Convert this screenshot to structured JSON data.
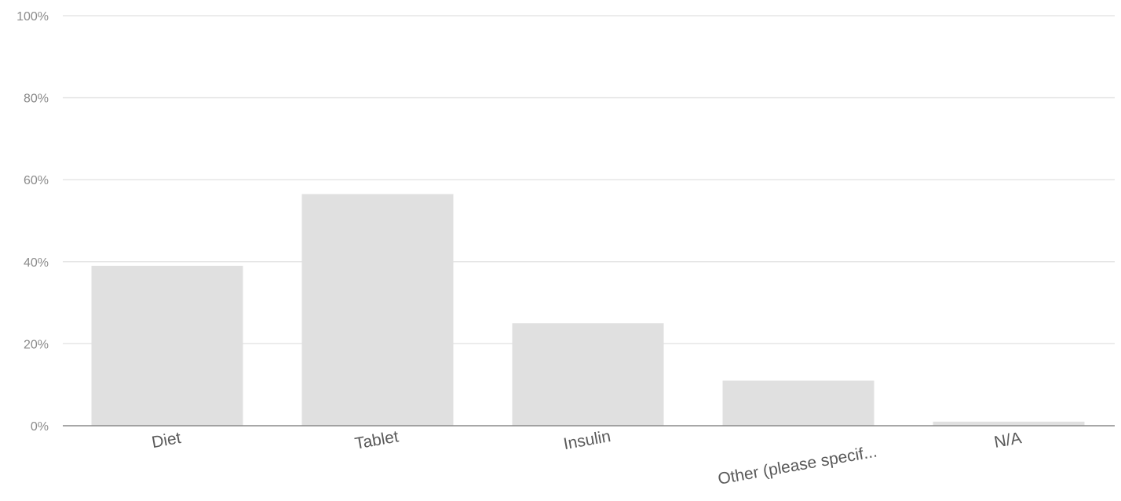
{
  "chart_data": {
    "type": "bar",
    "categories": [
      "Diet",
      "Tablet",
      "Insulin",
      "Other (please specif...",
      "N/A"
    ],
    "values": [
      39,
      56.5,
      25,
      11,
      1
    ],
    "ylim": [
      0,
      100
    ],
    "yticks": [
      0,
      20,
      40,
      60,
      80,
      100
    ],
    "ytick_labels": [
      "0%",
      "20%",
      "40%",
      "60%",
      "80%",
      "100%"
    ],
    "title": "",
    "xlabel": "",
    "ylabel": "",
    "grid": true,
    "legend": "none",
    "colors": {
      "bar": "#e0e0e0",
      "grid": "#e6e6e6",
      "axis": "#8a8a8a"
    }
  }
}
